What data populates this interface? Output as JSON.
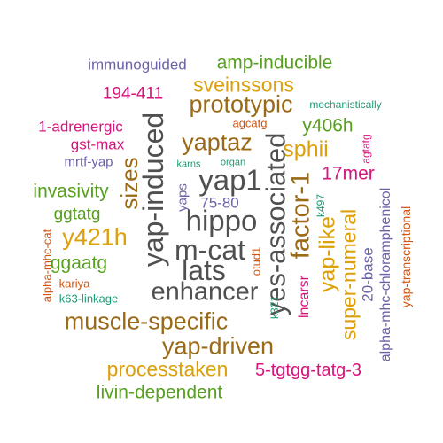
{
  "colors": {
    "purple": "#6a63a8",
    "green": "#57a01e",
    "gold": "#dca00c",
    "brown": "#9a6a17",
    "gray": "#505050",
    "magenta": "#d8137c",
    "orange": "#cf5514",
    "teal": "#1f9a76"
  },
  "words": [
    {
      "id": "immunoguided",
      "text": "immunoguided",
      "color": "purple"
    },
    {
      "id": "amp-inducible",
      "text": "amp-inducible",
      "color": "green"
    },
    {
      "id": "194-411",
      "text": "194-411",
      "color": "magenta"
    },
    {
      "id": "sveinssons",
      "text": "sveinssons",
      "color": "gold"
    },
    {
      "id": "prototypic",
      "text": "prototypic",
      "color": "brown"
    },
    {
      "id": "mechanistically",
      "text": "mechanistically",
      "color": "teal"
    },
    {
      "id": "1-adrenergic",
      "text": "1-adrenergic",
      "color": "magenta"
    },
    {
      "id": "agcatg",
      "text": "agcatg",
      "color": "orange"
    },
    {
      "id": "y406h",
      "text": "y406h",
      "color": "green"
    },
    {
      "id": "gst-max",
      "text": "gst-max",
      "color": "magenta"
    },
    {
      "id": "yaptaz",
      "text": "yaptaz",
      "color": "brown"
    },
    {
      "id": "sphii",
      "text": "sphii",
      "color": "gold"
    },
    {
      "id": "agtatg",
      "text": "agtatg",
      "color": "magenta"
    },
    {
      "id": "mrtf-yap",
      "text": "mrtf-yap",
      "color": "purple"
    },
    {
      "id": "karns",
      "text": "karns",
      "color": "teal"
    },
    {
      "id": "organ",
      "text": "organ",
      "color": "teal"
    },
    {
      "id": "17mer",
      "text": "17mer",
      "color": "magenta"
    },
    {
      "id": "yap-induced",
      "text": "yap-induced",
      "color": "gray"
    },
    {
      "id": "sizes",
      "text": "sizes",
      "color": "brown"
    },
    {
      "id": "yap1",
      "text": "yap1",
      "color": "gray"
    },
    {
      "id": "yes-associated",
      "text": "yes-associated",
      "color": "gray"
    },
    {
      "id": "factor-1",
      "text": "factor-1",
      "color": "brown"
    },
    {
      "id": "invasivity",
      "text": "invasivity",
      "color": "green"
    },
    {
      "id": "yaps",
      "text": "yaps",
      "color": "purple"
    },
    {
      "id": "75-80",
      "text": "75-80",
      "color": "purple"
    },
    {
      "id": "k497",
      "text": "k497",
      "color": "teal"
    },
    {
      "id": "alpha-mhc-chloramphenicol",
      "text": "alpha-mhc-chloramphenicol",
      "color": "purple"
    },
    {
      "id": "yap-transcriptional",
      "text": "yap-transcriptional",
      "color": "orange"
    },
    {
      "id": "ggtatg",
      "text": "ggtatg",
      "color": "green"
    },
    {
      "id": "hippo",
      "text": "hippo",
      "color": "gray"
    },
    {
      "id": "yap-like",
      "text": "yap-like",
      "color": "gold"
    },
    {
      "id": "20-base",
      "text": "20-base",
      "color": "purple"
    },
    {
      "id": "y421h",
      "text": "y421h",
      "color": "gold"
    },
    {
      "id": "m-cat",
      "text": "m-cat",
      "color": "gray"
    },
    {
      "id": "super-numeral",
      "text": "super-numeral",
      "color": "gold"
    },
    {
      "id": "alpha-mhc-cat",
      "text": "alpha-mhc-cat",
      "color": "orange"
    },
    {
      "id": "ggaatg",
      "text": "ggaatg",
      "color": "green"
    },
    {
      "id": "lats",
      "text": "lats",
      "color": "gray"
    },
    {
      "id": "otud1",
      "text": "otud1",
      "color": "orange"
    },
    {
      "id": "lncarsr",
      "text": "lncarsr",
      "color": "magenta"
    },
    {
      "id": "kariya",
      "text": "kariya",
      "color": "orange"
    },
    {
      "id": "k63-linkage",
      "text": "k63-linkage",
      "color": "teal"
    },
    {
      "id": "enhancer",
      "text": "enhancer",
      "color": "gray"
    },
    {
      "id": "k321",
      "text": "k321",
      "color": "teal"
    },
    {
      "id": "muscle-specific",
      "text": "muscle-specific",
      "color": "brown"
    },
    {
      "id": "yap-driven",
      "text": "yap-driven",
      "color": "brown"
    },
    {
      "id": "processtaken",
      "text": "processtaken",
      "color": "gold"
    },
    {
      "id": "5-tgtgg-tatg-3",
      "text": "5-tgtgg-tatg-3",
      "color": "magenta"
    },
    {
      "id": "livin-dependent",
      "text": "livin-dependent",
      "color": "green"
    }
  ]
}
